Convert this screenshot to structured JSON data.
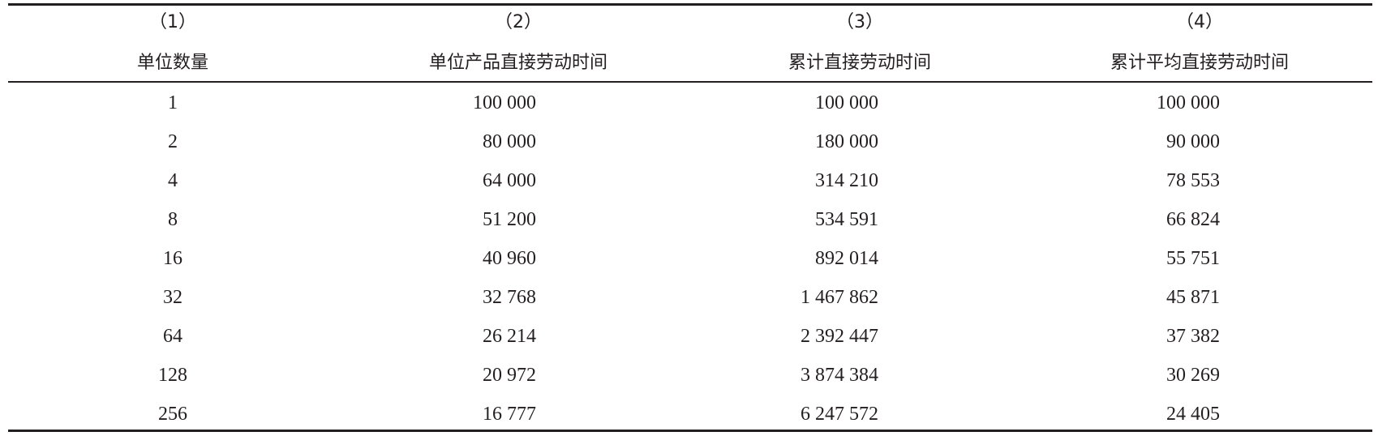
{
  "table": {
    "header": {
      "numbers": [
        "（1）",
        "（2）",
        "（3）",
        "（4）"
      ],
      "labels": [
        "单位数量",
        "单位产品直接劳动时间",
        "累计直接劳动时间",
        "累计平均直接劳动时间"
      ]
    },
    "rows": [
      [
        "1",
        "100 000",
        "100 000",
        "100 000"
      ],
      [
        "2",
        "80 000",
        "180 000",
        "90 000"
      ],
      [
        "4",
        "64 000",
        "314 210",
        "78 553"
      ],
      [
        "8",
        "51 200",
        "534 591",
        "66 824"
      ],
      [
        "16",
        "40 960",
        "892 014",
        "55 751"
      ],
      [
        "32",
        "32 768",
        "1 467 862",
        "45 871"
      ],
      [
        "64",
        "26 214",
        "2 392 447",
        "37 382"
      ],
      [
        "128",
        "20 972",
        "3 874 384",
        "30 269"
      ],
      [
        "256",
        "16 777",
        "6 247 572",
        "24 405"
      ]
    ]
  }
}
